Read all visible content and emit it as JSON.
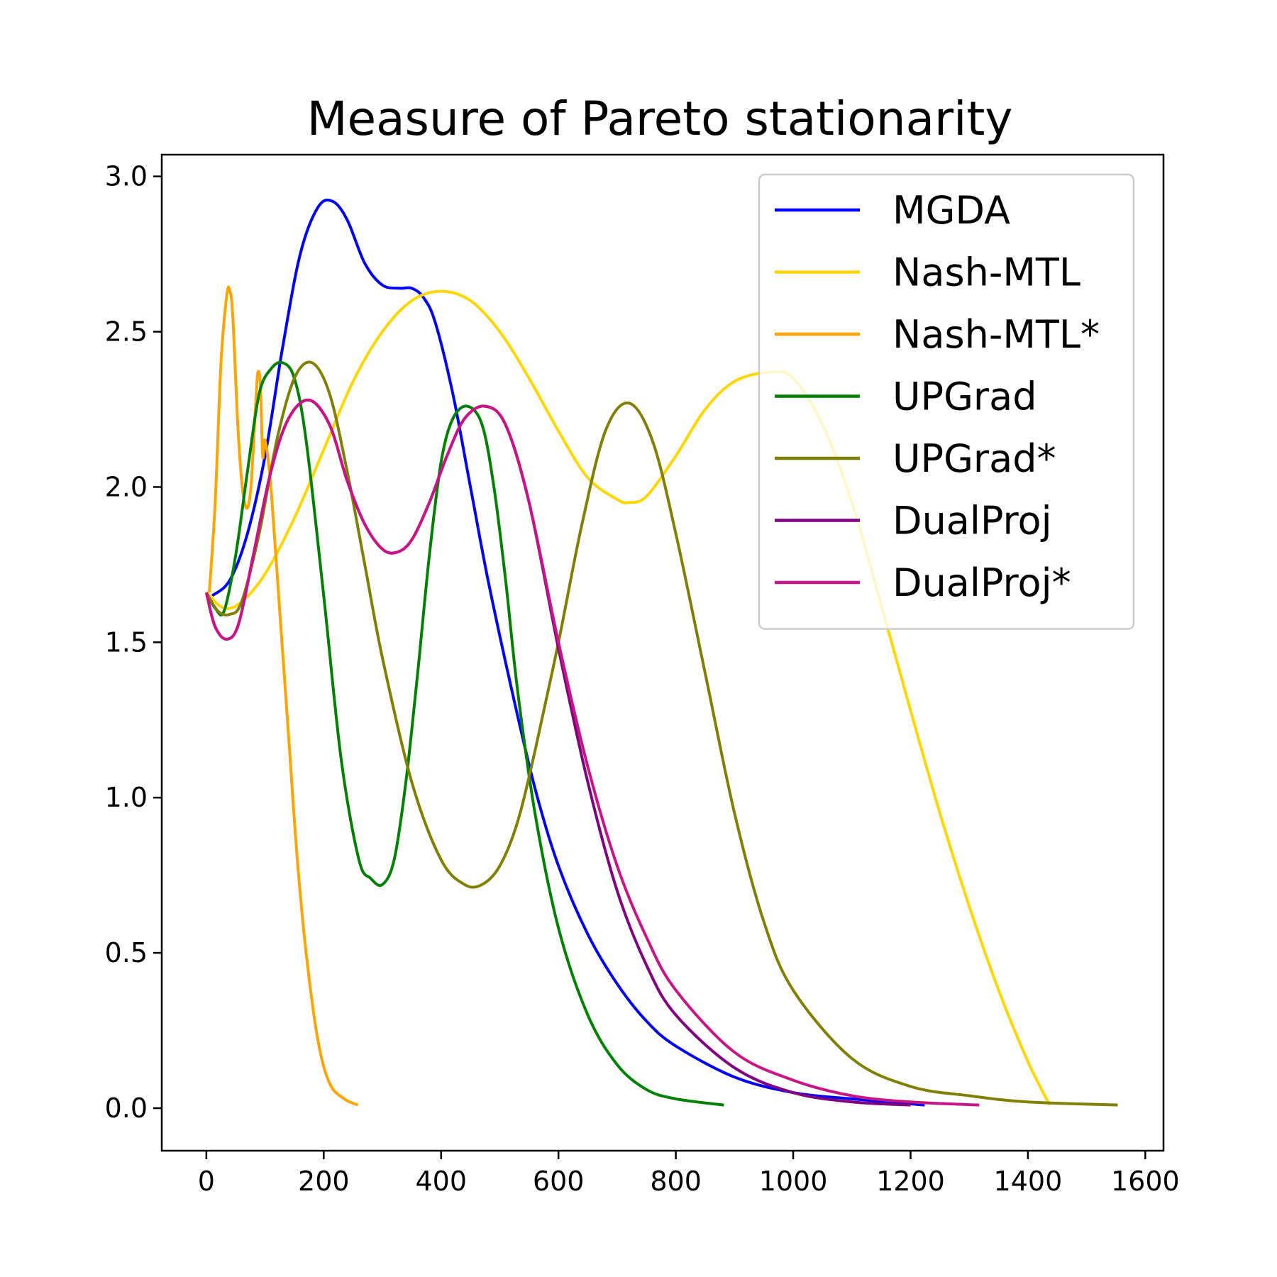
{
  "chart_data": {
    "type": "line",
    "title": "Measure of Pareto stationarity",
    "xlabel": "",
    "ylabel": "",
    "xlim": [
      -76,
      1631
    ],
    "ylim": [
      -0.137,
      3.07
    ],
    "xticks": [
      0,
      200,
      400,
      600,
      800,
      1000,
      1200,
      1400,
      1600
    ],
    "yticks": [
      0.0,
      0.5,
      1.0,
      1.5,
      2.0,
      2.5,
      3.0
    ],
    "xtick_labels": [
      "0",
      "200",
      "400",
      "600",
      "800",
      "1000",
      "1200",
      "1400",
      "1600"
    ],
    "ytick_labels": [
      "0.0",
      "0.5",
      "1.0",
      "1.5",
      "2.0",
      "2.5",
      "3.0"
    ],
    "grid": false,
    "legend_position": "top-right",
    "series": [
      {
        "name": "MGDA",
        "color": "#0000ff",
        "x": [
          10,
          40,
          70,
          100,
          130,
          160,
          190,
          215,
          240,
          270,
          300,
          330,
          350,
          370,
          390,
          420,
          450,
          480,
          520,
          560,
          600,
          650,
          700,
          750,
          800,
          900,
          1000,
          1100,
          1224
        ],
        "y": [
          1.65,
          1.7,
          1.85,
          2.1,
          2.45,
          2.75,
          2.9,
          2.92,
          2.86,
          2.72,
          2.65,
          2.64,
          2.64,
          2.61,
          2.53,
          2.3,
          2.0,
          1.7,
          1.35,
          1.03,
          0.78,
          0.56,
          0.4,
          0.28,
          0.2,
          0.1,
          0.05,
          0.03,
          0.01
        ]
      },
      {
        "name": "Nash-MTL",
        "color": "#ffd700",
        "x": [
          0,
          30,
          60,
          100,
          150,
          200,
          250,
          300,
          350,
          400,
          450,
          500,
          550,
          600,
          650,
          700,
          720,
          750,
          800,
          850,
          900,
          960,
          1000,
          1050,
          1100,
          1150,
          1200,
          1250,
          1300,
          1350,
          1400,
          1437
        ],
        "y": [
          1.66,
          1.61,
          1.63,
          1.72,
          1.9,
          2.12,
          2.34,
          2.5,
          2.6,
          2.63,
          2.6,
          2.5,
          2.35,
          2.18,
          2.03,
          1.96,
          1.95,
          1.97,
          2.1,
          2.25,
          2.34,
          2.37,
          2.35,
          2.2,
          1.95,
          1.62,
          1.28,
          0.95,
          0.65,
          0.38,
          0.15,
          0.01
        ]
      },
      {
        "name": "Nash-MTL*",
        "color": "#ffa500",
        "x": [
          5,
          15,
          25,
          35,
          40,
          45,
          55,
          65,
          75,
          85,
          88,
          92,
          96,
          100,
          110,
          125,
          140,
          155,
          170,
          190,
          210,
          235,
          258
        ],
        "y": [
          1.66,
          1.95,
          2.4,
          2.62,
          2.63,
          2.55,
          2.15,
          1.95,
          1.98,
          2.3,
          2.37,
          2.33,
          2.1,
          2.15,
          2.0,
          1.6,
          1.2,
          0.8,
          0.5,
          0.22,
          0.08,
          0.03,
          0.01
        ]
      },
      {
        "name": "UPGrad",
        "color": "#008000",
        "x": [
          0,
          15,
          30,
          50,
          70,
          90,
          110,
          130,
          150,
          170,
          200,
          230,
          260,
          280,
          300,
          320,
          340,
          360,
          380,
          400,
          420,
          445,
          470,
          490,
          510,
          530,
          560,
          600,
          650,
          700,
          750,
          800,
          882
        ],
        "y": [
          1.66,
          1.61,
          1.6,
          1.78,
          2.05,
          2.3,
          2.38,
          2.4,
          2.35,
          2.15,
          1.65,
          1.12,
          0.8,
          0.74,
          0.72,
          0.8,
          1.05,
          1.4,
          1.78,
          2.08,
          2.22,
          2.26,
          2.2,
          2.0,
          1.7,
          1.35,
          0.95,
          0.58,
          0.3,
          0.14,
          0.06,
          0.03,
          0.01
        ]
      },
      {
        "name": "UPGrad*",
        "color": "#808000",
        "x": [
          0,
          20,
          40,
          60,
          90,
          120,
          150,
          180,
          210,
          240,
          270,
          300,
          350,
          400,
          440,
          470,
          500,
          530,
          560,
          600,
          640,
          680,
          720,
          760,
          800,
          850,
          900,
          950,
          1000,
          1100,
          1200,
          1300,
          1400,
          1553
        ],
        "y": [
          1.66,
          1.6,
          1.59,
          1.63,
          1.85,
          2.15,
          2.35,
          2.4,
          2.3,
          2.05,
          1.75,
          1.45,
          1.05,
          0.8,
          0.72,
          0.72,
          0.78,
          0.92,
          1.15,
          1.5,
          1.88,
          2.18,
          2.27,
          2.15,
          1.85,
          1.4,
          0.95,
          0.6,
          0.38,
          0.16,
          0.07,
          0.04,
          0.02,
          0.01
        ]
      },
      {
        "name": "DualProj",
        "color": "#800080",
        "x": [
          0,
          15,
          35,
          55,
          80,
          110,
          140,
          175,
          210,
          240,
          270,
          300,
          325,
          350,
          380,
          410,
          440,
          475,
          510,
          550,
          600,
          650,
          700,
          750,
          800,
          900,
          1000,
          1100,
          1200
        ],
        "y": [
          1.66,
          1.55,
          1.51,
          1.56,
          1.78,
          2.05,
          2.22,
          2.28,
          2.2,
          2.02,
          1.88,
          1.8,
          1.79,
          1.83,
          1.95,
          2.1,
          2.22,
          2.26,
          2.2,
          1.95,
          1.48,
          1.05,
          0.7,
          0.46,
          0.3,
          0.13,
          0.05,
          0.02,
          0.01
        ]
      },
      {
        "name": "DualProj*",
        "color": "#c71585",
        "x": [
          0,
          15,
          35,
          55,
          80,
          110,
          140,
          175,
          210,
          240,
          270,
          300,
          325,
          350,
          380,
          410,
          440,
          475,
          510,
          550,
          600,
          650,
          700,
          750,
          800,
          900,
          1000,
          1100,
          1200,
          1317
        ],
        "y": [
          1.66,
          1.55,
          1.51,
          1.56,
          1.78,
          2.05,
          2.22,
          2.28,
          2.2,
          2.02,
          1.88,
          1.8,
          1.79,
          1.83,
          1.95,
          2.1,
          2.22,
          2.26,
          2.2,
          1.95,
          1.5,
          1.1,
          0.78,
          0.55,
          0.38,
          0.18,
          0.09,
          0.04,
          0.02,
          0.01
        ]
      }
    ]
  }
}
